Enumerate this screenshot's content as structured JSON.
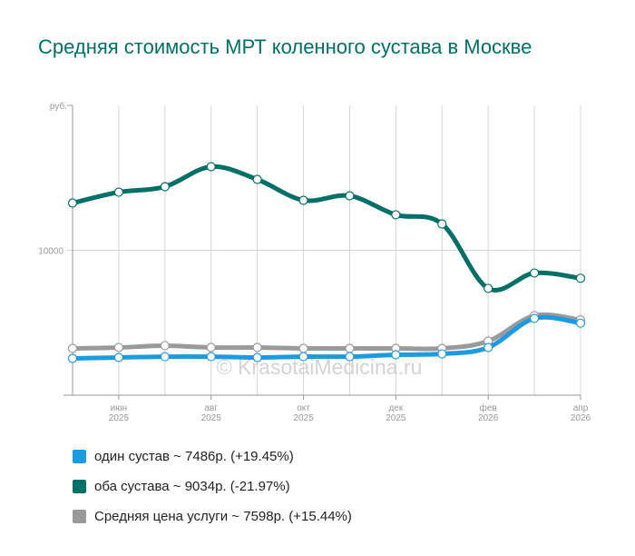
{
  "chart_data": {
    "type": "line",
    "title": "Средняя стоимость МРТ коленного сустава в Москве",
    "ylabel": "руб.",
    "ylim": [
      5000,
      15000
    ],
    "yticks": [
      {
        "value": 10000,
        "label": "10000"
      }
    ],
    "x": [
      "2025-05",
      "2025-06",
      "2025-07",
      "2025-08",
      "2025-09",
      "2025-10",
      "2025-11",
      "2025-12",
      "2026-01",
      "2026-02",
      "2026-03",
      "2026-04"
    ],
    "xticks": [
      {
        "index": 1,
        "month": "июн",
        "year": "2025"
      },
      {
        "index": 3,
        "month": "авг",
        "year": "2025"
      },
      {
        "index": 5,
        "month": "окт",
        "year": "2025"
      },
      {
        "index": 7,
        "month": "дек",
        "year": "2025"
      },
      {
        "index": 9,
        "month": "фев",
        "year": "2026"
      },
      {
        "index": 11,
        "month": "апр",
        "year": "2026"
      }
    ],
    "grid": true,
    "watermark": "© KrasotaiMedicina.ru",
    "legend_position": "bottom",
    "series": [
      {
        "name": "один сустав",
        "legend": "один сустав ~ 7486р. (+19.45%)",
        "color": "#1e9be0",
        "values": [
          6270,
          6300,
          6330,
          6330,
          6300,
          6330,
          6330,
          6395,
          6425,
          6645,
          7650,
          7486
        ]
      },
      {
        "name": "оба сустава",
        "legend": "оба сустава ~ 9034р. (-21.97%)",
        "color": "#006f66",
        "values": [
          11630,
          12005,
          12195,
          12885,
          12445,
          11725,
          11880,
          11225,
          10910,
          8685,
          9215,
          9034
        ]
      },
      {
        "name": "Средняя цена услуги",
        "legend": "Средняя цена услуги ~ 7598р. (+15.44%)",
        "color": "#9a9a9a",
        "values": [
          6615,
          6645,
          6710,
          6645,
          6645,
          6615,
          6615,
          6615,
          6615,
          6865,
          7745,
          7598
        ]
      }
    ]
  }
}
